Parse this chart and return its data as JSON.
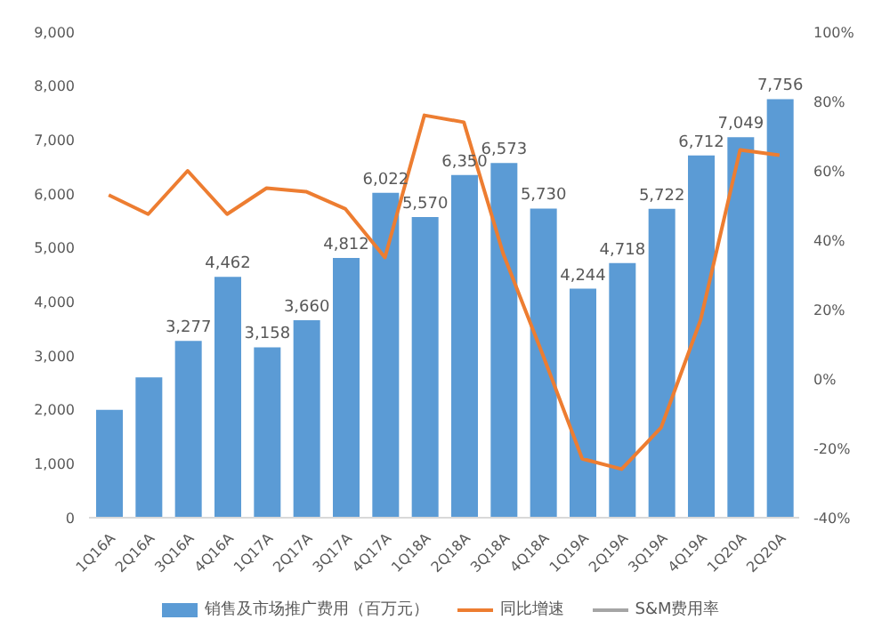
{
  "chart_data": {
    "type": "bar",
    "categories": [
      "1Q16A",
      "2Q16A",
      "3Q16A",
      "4Q16A",
      "1Q17A",
      "2Q17A",
      "3Q17A",
      "4Q17A",
      "1Q18A",
      "2Q18A",
      "3Q18A",
      "4Q18A",
      "1Q19A",
      "2Q19A",
      "3Q19A",
      "4Q19A",
      "1Q20A",
      "2Q20A"
    ],
    "series": [
      {
        "name": "销售及市场推广费用（百万元）",
        "color": "#5b9bd5",
        "values": [
          2000,
          2600,
          3277,
          4462,
          3158,
          3660,
          4812,
          6022,
          5570,
          6350,
          6573,
          5730,
          4244,
          4718,
          5722,
          6712,
          7049,
          7756
        ],
        "value_labels": [
          null,
          null,
          "3,277",
          "4,462",
          "3,158",
          "3,660",
          "4,812",
          "6,022",
          "5,570",
          "6,350",
          "6,573",
          "5,730",
          "4,244",
          "4,718",
          "5,722",
          "6,712",
          "7,049",
          "7,756"
        ]
      },
      {
        "name": "同比增速",
        "type": "line",
        "axis": "y2",
        "color": "#ed7d31",
        "values": [
          53,
          47.5,
          60,
          47.5,
          55,
          54,
          49,
          35,
          76,
          74,
          36,
          7,
          -23,
          -26,
          -14,
          17,
          66,
          64.5
        ]
      },
      {
        "name": "S&M费用率",
        "type": "line",
        "axis": "y2",
        "color": "#a5a5a5",
        "values": [
          null,
          null,
          null,
          null,
          null,
          null,
          null,
          null,
          null,
          null,
          null,
          null,
          null,
          null,
          null,
          null,
          null,
          null
        ]
      }
    ],
    "ylim": [
      0,
      9000
    ],
    "yticks": [
      0,
      {
        "value": 1000,
        "label": "1,000"
      },
      {
        "value": 2000,
        "label": "2,000"
      },
      {
        "value": 3000,
        "label": "3,000"
      },
      {
        "value": 4000,
        "label": "4,000"
      },
      {
        "value": 5000,
        "label": "5,000"
      },
      {
        "value": 6000,
        "label": "6,000"
      },
      {
        "value": 7000,
        "label": "7,000"
      },
      {
        "value": 8000,
        "label": "8,000"
      },
      {
        "value": 9000,
        "label": "9,000"
      }
    ],
    "y2lim": [
      -40,
      100
    ],
    "y2ticks": [
      {
        "value": -40,
        "label": "-40%"
      },
      {
        "value": -20,
        "label": "-20%"
      },
      {
        "value": 0,
        "label": "0%"
      },
      {
        "value": 20,
        "label": "20%"
      },
      {
        "value": 40,
        "label": "40%"
      },
      {
        "value": 60,
        "label": "60%"
      },
      {
        "value": 80,
        "label": "80%"
      },
      {
        "value": 100,
        "label": "100%"
      }
    ],
    "legend": "bottom",
    "marker": "none"
  }
}
